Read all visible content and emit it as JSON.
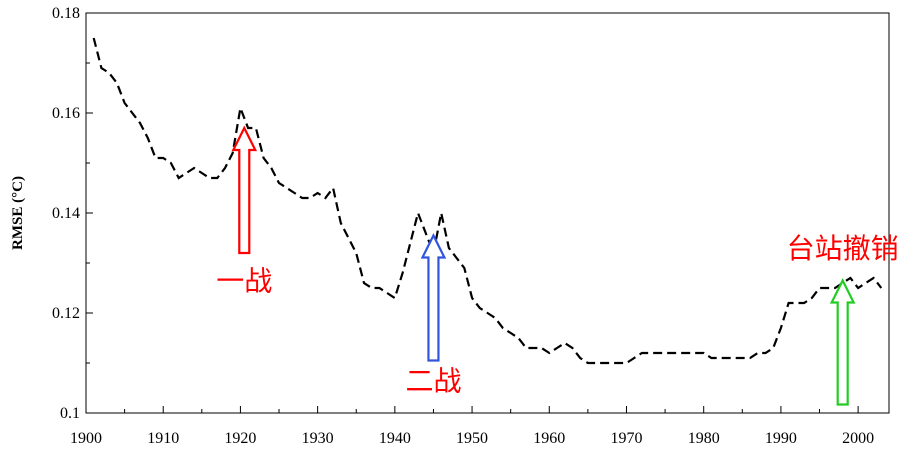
{
  "chart_data": {
    "type": "line",
    "title": "",
    "xlabel": "",
    "ylabel": "RMSE (°C)",
    "xlim": [
      1900,
      2004
    ],
    "ylim": [
      0.1,
      0.18
    ],
    "x_ticks": [
      1900,
      1910,
      1920,
      1930,
      1940,
      1950,
      1960,
      1970,
      1980,
      1990,
      2000
    ],
    "x_tick_labels": [
      "1900",
      "1910",
      "1920",
      "1930",
      "1940",
      "1950",
      "1960",
      "1970",
      "1980",
      "1990",
      "2000"
    ],
    "y_ticks": [
      0.1,
      0.12,
      0.14,
      0.16,
      0.18
    ],
    "y_tick_labels": [
      "0.1",
      "0.12",
      "0.14",
      "0.16",
      "0.18"
    ],
    "grid": false,
    "legend": "none",
    "series": [
      {
        "line_style": "dashed",
        "color": "#000000",
        "x": [
          1901,
          1902,
          1903,
          1904,
          1905,
          1906,
          1907,
          1908,
          1909,
          1910,
          1911,
          1912,
          1913,
          1914,
          1915,
          1916,
          1917,
          1918,
          1919,
          1920,
          1921,
          1922,
          1923,
          1924,
          1925,
          1926,
          1927,
          1928,
          1929,
          1930,
          1931,
          1932,
          1933,
          1934,
          1935,
          1936,
          1937,
          1938,
          1939,
          1940,
          1941,
          1942,
          1943,
          1944,
          1945,
          1946,
          1947,
          1948,
          1949,
          1950,
          1951,
          1952,
          1953,
          1954,
          1955,
          1956,
          1957,
          1958,
          1959,
          1960,
          1961,
          1962,
          1963,
          1964,
          1965,
          1966,
          1967,
          1968,
          1969,
          1970,
          1971,
          1972,
          1973,
          1974,
          1975,
          1976,
          1977,
          1978,
          1979,
          1980,
          1981,
          1982,
          1983,
          1984,
          1985,
          1986,
          1987,
          1988,
          1989,
          1990,
          1991,
          1992,
          1993,
          1994,
          1995,
          1996,
          1997,
          1998,
          1999,
          2000,
          2001,
          2002,
          2003
        ],
        "y": [
          0.175,
          0.169,
          0.168,
          0.166,
          0.162,
          0.16,
          0.158,
          0.155,
          0.151,
          0.151,
          0.15,
          0.147,
          0.148,
          0.149,
          0.148,
          0.147,
          0.147,
          0.149,
          0.152,
          0.161,
          0.157,
          0.157,
          0.151,
          0.149,
          0.146,
          0.145,
          0.144,
          0.143,
          0.143,
          0.144,
          0.143,
          0.145,
          0.138,
          0.135,
          0.132,
          0.126,
          0.125,
          0.125,
          0.124,
          0.123,
          0.128,
          0.134,
          0.14,
          0.136,
          0.132,
          0.14,
          0.133,
          0.131,
          0.129,
          0.123,
          0.121,
          0.12,
          0.119,
          0.117,
          0.116,
          0.115,
          0.113,
          0.113,
          0.113,
          0.112,
          0.113,
          0.114,
          0.113,
          0.111,
          0.11,
          0.11,
          0.11,
          0.11,
          0.11,
          0.11,
          0.111,
          0.112,
          0.112,
          0.112,
          0.112,
          0.112,
          0.112,
          0.112,
          0.112,
          0.112,
          0.111,
          0.111,
          0.111,
          0.111,
          0.111,
          0.111,
          0.112,
          0.112,
          0.113,
          0.117,
          0.122,
          0.122,
          0.122,
          0.123,
          0.125,
          0.125,
          0.125,
          0.126,
          0.127,
          0.125,
          0.126,
          0.127,
          0.125
        ]
      }
    ],
    "annotations": [
      {
        "text": "一战",
        "year": 1920.5,
        "arrow_from": 0.132,
        "arrow_to": 0.157,
        "label_value": 0.1245,
        "color": "#ff0000"
      },
      {
        "text": "二战",
        "year": 1945.0,
        "arrow_from": 0.1105,
        "arrow_to": 0.1355,
        "label_value": 0.1045,
        "color": "#3355dd"
      },
      {
        "text": "台站撤销",
        "year": 1998.0,
        "arrow_from": 0.1017,
        "arrow_to": 0.1265,
        "label_value": 0.131,
        "color": "#22cc22"
      }
    ]
  }
}
